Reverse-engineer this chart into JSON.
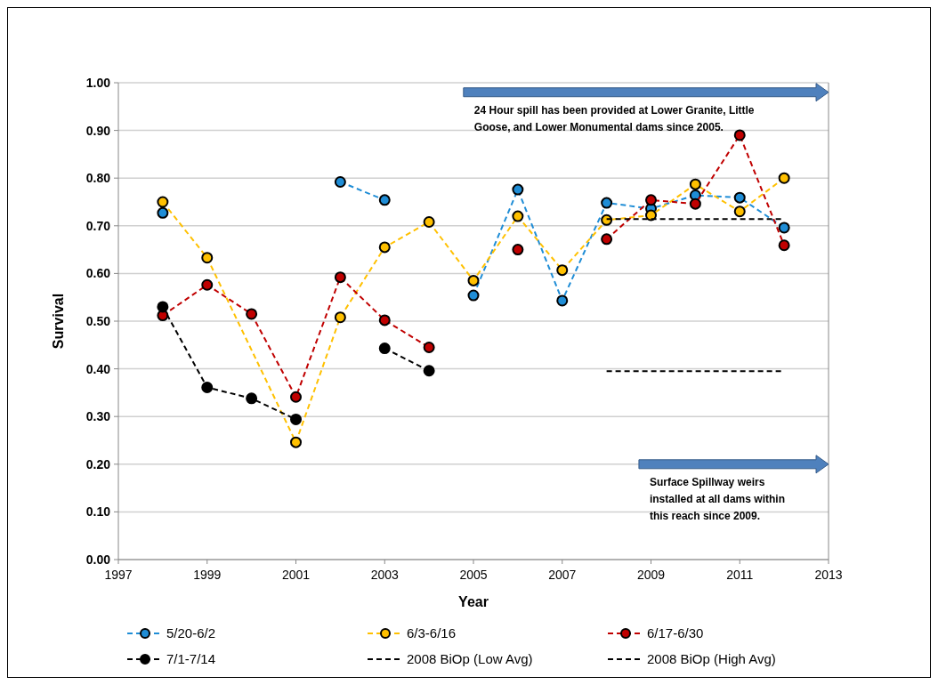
{
  "chart_data": {
    "type": "line",
    "xlabel": "Year",
    "ylabel": "Survival",
    "xlim": [
      1997,
      2013
    ],
    "xticks": [
      1997,
      1999,
      2001,
      2003,
      2005,
      2007,
      2009,
      2011,
      2013
    ],
    "ylim": [
      0,
      1
    ],
    "yticks": [
      {
        "value": 0,
        "label": "0.00"
      },
      {
        "value": 0.1,
        "label": "0.10"
      },
      {
        "value": 0.2,
        "label": "0.20"
      },
      {
        "value": 0.3,
        "label": "0.30"
      },
      {
        "value": 0.4,
        "label": "0.40"
      },
      {
        "value": 0.5,
        "label": "0.50"
      },
      {
        "value": 0.6,
        "label": "0.60"
      },
      {
        "value": 0.7,
        "label": "0.70"
      },
      {
        "value": 0.8,
        "label": "0.80"
      },
      {
        "value": 0.9,
        "label": "0.90"
      },
      {
        "value": 1,
        "label": "1.00"
      }
    ],
    "grid": "y",
    "legend": "bottom",
    "marker": "circle",
    "line_style": "dashed",
    "series": [
      {
        "name": "5/20-6/2",
        "color": "#1f8dd6",
        "x": [
          1998,
          1999,
          2002,
          2003,
          2004,
          2005,
          2006,
          2007,
          2008,
          2009,
          2010,
          2011,
          2012
        ],
        "values": [
          0.727,
          null,
          0.792,
          0.754,
          null,
          0.554,
          0.776,
          0.543,
          0.748,
          0.736,
          0.764,
          0.759,
          0.696
        ]
      },
      {
        "name": "6/3-6/16",
        "color": "#ffc000",
        "x": [
          1998,
          1999,
          2001,
          2002,
          2003,
          2004,
          2005,
          2006,
          2007,
          2008,
          2009,
          2010,
          2011,
          2012
        ],
        "values": [
          0.75,
          0.633,
          0.246,
          0.508,
          0.655,
          0.708,
          0.585,
          0.72,
          0.607,
          0.712,
          0.722,
          0.787,
          0.73,
          0.8
        ]
      },
      {
        "name": "6/17-6/30",
        "color": "#c00000",
        "x": [
          1998,
          1999,
          2000,
          2001,
          2002,
          2003,
          2004,
          2005,
          2006,
          2007,
          2008,
          2009,
          2010,
          2011,
          2012
        ],
        "values": [
          0.512,
          0.576,
          0.515,
          0.341,
          0.592,
          0.502,
          0.445,
          null,
          0.65,
          null,
          0.672,
          0.754,
          0.746,
          0.89,
          0.659
        ]
      },
      {
        "name": "7/1-7/14",
        "color": "#000000",
        "x": [
          1998,
          1999,
          2000,
          2001,
          2002,
          2003,
          2004
        ],
        "values": [
          0.53,
          0.361,
          0.338,
          0.294,
          null,
          0.443,
          0.396
        ]
      },
      {
        "name": "2008 BiOp (Low Avg)",
        "color": "#000000",
        "marker": "none",
        "x": [
          2008,
          2012
        ],
        "values": [
          0.395,
          0.395
        ]
      },
      {
        "name": "2008 BiOp (High Avg)",
        "color": "#000000",
        "marker": "none",
        "x": [
          2008,
          2012
        ],
        "values": [
          0.714,
          0.714
        ]
      }
    ],
    "annotations": [
      "24 Hour spill has been provided at Lower Granite, Little Goose, and Lower Monumental dams since 2005.",
      "Surface Spillway weirs installed at all dams within this reach since 2009."
    ]
  }
}
